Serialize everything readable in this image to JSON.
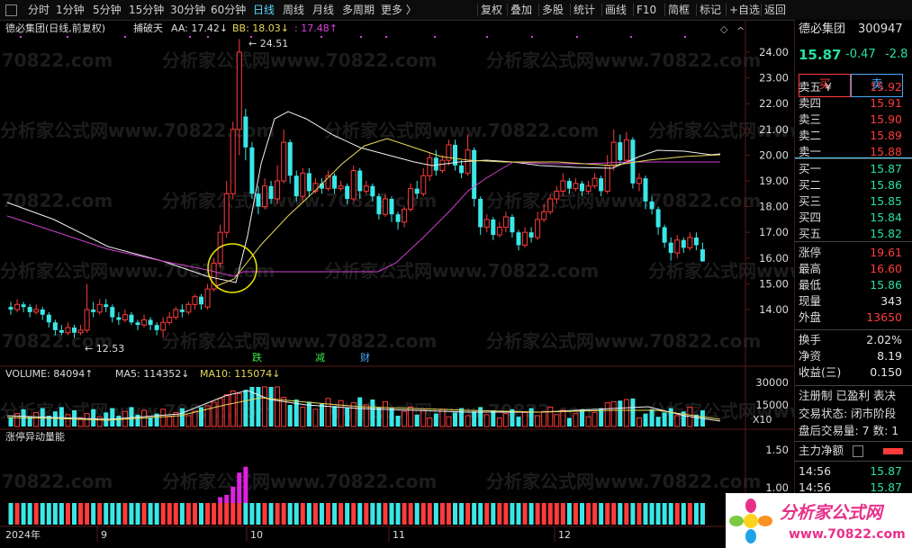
{
  "toolbar": {
    "items": [
      "分时",
      "1分钟",
      "5分钟",
      "15分钟",
      "30分钟",
      "60分钟",
      "日线",
      "周线",
      "月线",
      "多周期",
      "更多 〉"
    ],
    "active": "日线",
    "right_items": [
      "复权",
      "叠加",
      "多股",
      "统计",
      "画线",
      "F10",
      "简框",
      "标记",
      "+自选",
      "返回"
    ]
  },
  "chart_header": {
    "title": "德必集团(日线,前复权)",
    "indicator": "捕破天",
    "aa_label": "AA: 17.42↓",
    "bb_label": "BB: 18.03↓",
    "cc_label": ": 17.48↑",
    "diamond": "◇",
    "collapse": "^"
  },
  "price_axis": [
    "24.00",
    "23.00",
    "22.00",
    "21.00",
    "20.00",
    "19.00",
    "18.00",
    "17.00",
    "16.00",
    "15.00",
    "14.00"
  ],
  "annotations": {
    "high": "24.51",
    "low": "12.53",
    "die": "跌",
    "jian": "减",
    "cai": "财"
  },
  "volume_header": {
    "label": "VOLUME: 84094↑",
    "ma5": "MA5: 114352↓",
    "ma10": "MA10: 115074↓"
  },
  "volume_axis": [
    "30000",
    "15000"
  ],
  "volume_unit": "X10",
  "limit_header": {
    "label": "涨停异动量能"
  },
  "limit_axis": [
    "1.50",
    "1.00"
  ],
  "date_axis": [
    "2024年",
    "9",
    "10",
    "11",
    "12"
  ],
  "watermark": "分析家公式网www.70822.com",
  "side": {
    "name": "德必集团",
    "code": "300947",
    "price": "15.87",
    "change": "-0.47",
    "change_pct": "-2.8",
    "buy_btn": "买",
    "sell_btn": "卖",
    "asks": [
      {
        "label": "卖五 ¥",
        "value": "15.92"
      },
      {
        "label": "卖四",
        "value": "15.91"
      },
      {
        "label": "卖三",
        "value": "15.90"
      },
      {
        "label": "卖二",
        "value": "15.89"
      },
      {
        "label": "卖一",
        "value": "15.88"
      }
    ],
    "bids": [
      {
        "label": "买一",
        "value": "15.87"
      },
      {
        "label": "买二",
        "value": "15.86"
      },
      {
        "label": "买三",
        "value": "15.85"
      },
      {
        "label": "买四",
        "value": "15.84"
      },
      {
        "label": "买五",
        "value": "15.82"
      }
    ],
    "stats": [
      {
        "label": "涨停",
        "value": "19.61",
        "color": "red"
      },
      {
        "label": "最高",
        "value": "16.60",
        "color": "red"
      },
      {
        "label": "最低",
        "value": "15.86",
        "color": "green"
      },
      {
        "label": "现量",
        "value": "343",
        "color": "white"
      },
      {
        "label": "外盘",
        "value": "13650",
        "color": "red"
      }
    ],
    "stats2": [
      {
        "label": "换手",
        "value": "2.02%"
      },
      {
        "label": "净资",
        "value": "8.19"
      },
      {
        "label": "收益(三)",
        "value": "0.150"
      }
    ],
    "tags": "注册制 已盈利 表决",
    "trade_status": "交易状态: 闭市阶段",
    "after_hours": "盘后交易量: 7  数: 1",
    "main_net": "主力净额",
    "ticks": [
      {
        "time": "14:56",
        "value": "15.87"
      },
      {
        "time": "14:56",
        "value": "15.87"
      }
    ]
  },
  "logo": {
    "text": "分析家公式网",
    "url": "www.70822.com"
  },
  "chart_data": {
    "type": "candlestick",
    "title": "德必集团(日线,前复权)",
    "ylim": [
      12.5,
      24.6
    ],
    "annotated_high": 24.51,
    "annotated_low": 12.53,
    "last_close": 15.87,
    "months": [
      "2024年",
      "9",
      "10",
      "11",
      "12"
    ]
  }
}
